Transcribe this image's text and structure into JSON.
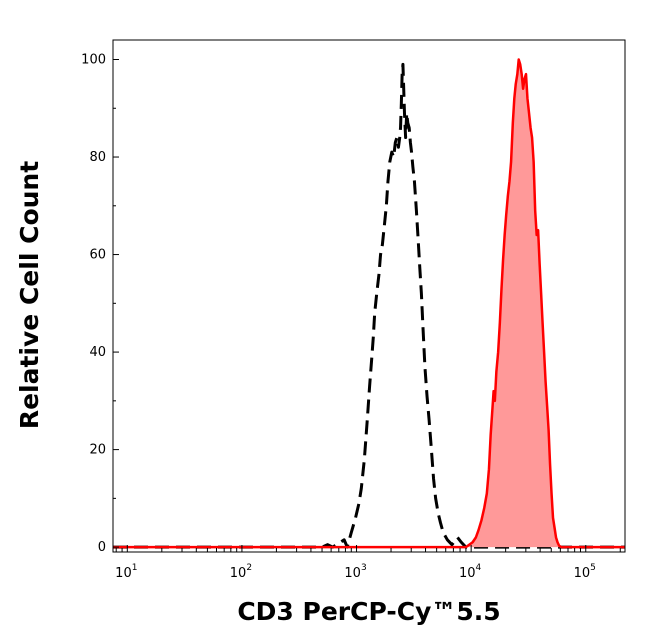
{
  "chart_data": {
    "type": "area",
    "xlabel": "CD3 PerCP-Cy™5.5",
    "ylabel": "Relative Cell Count",
    "x_scale": "log",
    "xlim": [
      7.5,
      220000
    ],
    "ylim": [
      -1,
      104
    ],
    "x_ticks": [
      {
        "base": "10",
        "exp": "1",
        "value": 10
      },
      {
        "base": "10",
        "exp": "2",
        "value": 100
      },
      {
        "base": "10",
        "exp": "3",
        "value": 1000
      },
      {
        "base": "10",
        "exp": "4",
        "value": 10000
      },
      {
        "base": "10",
        "exp": "5",
        "value": 100000
      }
    ],
    "y_ticks": [
      "0",
      "20",
      "40",
      "60",
      "80",
      "100"
    ],
    "y_tick_values": [
      0,
      20,
      40,
      60,
      80,
      100
    ],
    "series": [
      {
        "style": "dashed",
        "color": "#000000",
        "filled": false,
        "points": [
          [
            7.5,
            0
          ],
          [
            500,
            0
          ],
          [
            560,
            0.5
          ],
          [
            620,
            0
          ],
          [
            700,
            0.8
          ],
          [
            780,
            1.5
          ],
          [
            830,
            0
          ],
          [
            900,
            3
          ],
          [
            980,
            6
          ],
          [
            1050,
            9
          ],
          [
            1100,
            12
          ],
          [
            1170,
            18
          ],
          [
            1240,
            26
          ],
          [
            1300,
            33
          ],
          [
            1360,
            39
          ],
          [
            1400,
            43
          ],
          [
            1440,
            48
          ],
          [
            1500,
            52
          ],
          [
            1570,
            56
          ],
          [
            1620,
            60
          ],
          [
            1680,
            62
          ],
          [
            1750,
            66
          ],
          [
            1820,
            70
          ],
          [
            1880,
            75
          ],
          [
            1950,
            79
          ],
          [
            2030,
            81
          ],
          [
            2110,
            80
          ],
          [
            2180,
            83
          ],
          [
            2250,
            84
          ],
          [
            2320,
            82
          ],
          [
            2380,
            84
          ],
          [
            2420,
            86
          ],
          [
            2460,
            91
          ],
          [
            2500,
            97
          ],
          [
            2540,
            99
          ],
          [
            2580,
            94
          ],
          [
            2620,
            89
          ],
          [
            2680,
            84
          ],
          [
            2740,
            89
          ],
          [
            2800,
            87
          ],
          [
            2880,
            86
          ],
          [
            2950,
            83
          ],
          [
            3020,
            81
          ],
          [
            3100,
            78
          ],
          [
            3200,
            75
          ],
          [
            3330,
            69
          ],
          [
            3450,
            63
          ],
          [
            3570,
            57
          ],
          [
            3680,
            52
          ],
          [
            3800,
            45
          ],
          [
            3950,
            37
          ],
          [
            4120,
            31
          ],
          [
            4300,
            26
          ],
          [
            4500,
            20
          ],
          [
            4700,
            14
          ],
          [
            4900,
            10
          ],
          [
            5150,
            7
          ],
          [
            5400,
            5
          ],
          [
            5700,
            3
          ],
          [
            6200,
            1.5
          ],
          [
            6800,
            0.5
          ],
          [
            7600,
            2
          ],
          [
            8200,
            1
          ],
          [
            9000,
            0
          ],
          [
            220000,
            0
          ]
        ]
      },
      {
        "style": "solid",
        "color": "#ff0000",
        "fill": "#ff9999",
        "filled": true,
        "points": [
          [
            7.5,
            0
          ],
          [
            9000,
            0
          ],
          [
            10300,
            1
          ],
          [
            11000,
            2
          ],
          [
            11600,
            3.5
          ],
          [
            12300,
            5.5
          ],
          [
            13000,
            8
          ],
          [
            13700,
            11
          ],
          [
            14300,
            16
          ],
          [
            14800,
            23
          ],
          [
            15300,
            28
          ],
          [
            15700,
            32
          ],
          [
            16100,
            30
          ],
          [
            16600,
            36
          ],
          [
            17200,
            40
          ],
          [
            17800,
            46
          ],
          [
            18400,
            53
          ],
          [
            19000,
            59
          ],
          [
            19600,
            64
          ],
          [
            20200,
            68
          ],
          [
            20900,
            72
          ],
          [
            21600,
            75
          ],
          [
            22300,
            79
          ],
          [
            23100,
            87
          ],
          [
            23800,
            92
          ],
          [
            24500,
            95
          ],
          [
            25300,
            97
          ],
          [
            26000,
            100
          ],
          [
            26800,
            99
          ],
          [
            27600,
            97
          ],
          [
            28400,
            94
          ],
          [
            29200,
            96
          ],
          [
            30100,
            97
          ],
          [
            31000,
            92
          ],
          [
            32000,
            89
          ],
          [
            33000,
            86
          ],
          [
            34000,
            84
          ],
          [
            35100,
            79
          ],
          [
            36200,
            69
          ],
          [
            37300,
            64
          ],
          [
            38400,
            65
          ],
          [
            39600,
            58
          ],
          [
            40800,
            52
          ],
          [
            42000,
            46
          ],
          [
            43300,
            40
          ],
          [
            44600,
            34
          ],
          [
            46000,
            29
          ],
          [
            47400,
            24
          ],
          [
            48800,
            17
          ],
          [
            50300,
            11
          ],
          [
            51800,
            6
          ],
          [
            53400,
            4
          ],
          [
            55000,
            2
          ],
          [
            56700,
            1
          ],
          [
            58500,
            0.3
          ],
          [
            61000,
            0
          ],
          [
            220000,
            0
          ]
        ]
      }
    ]
  }
}
